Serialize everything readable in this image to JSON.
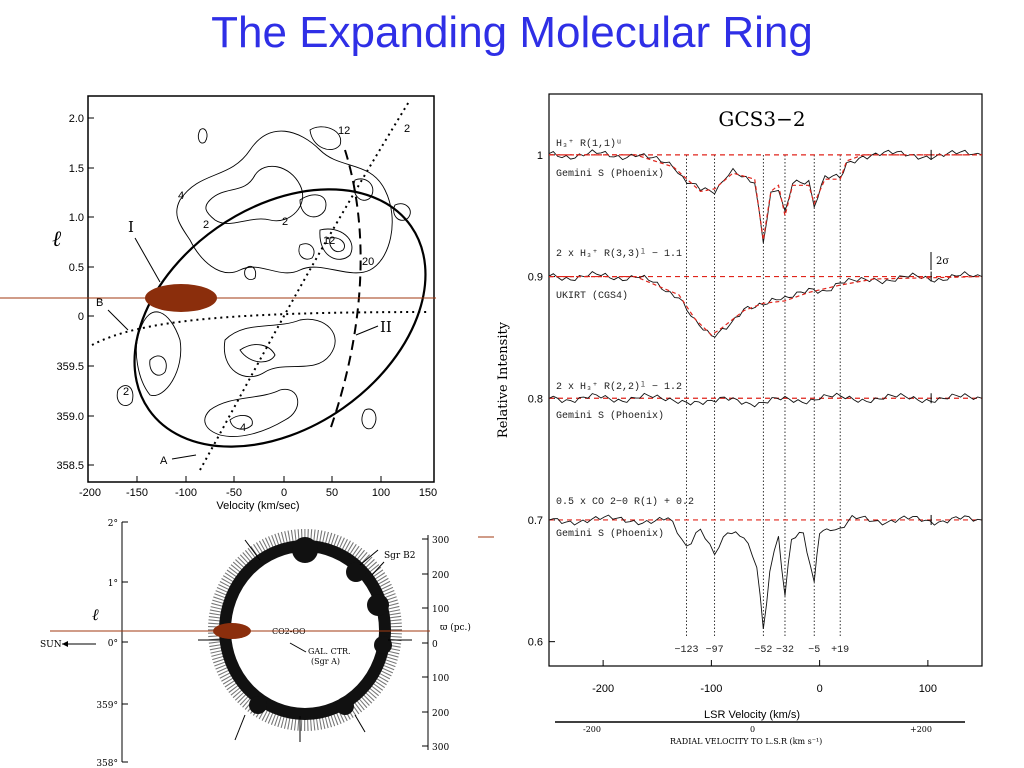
{
  "slide": {
    "title": "The Expanding Molecular Ring"
  },
  "contour_map": {
    "yaxis_label": "ℓ",
    "xaxis_label": "Velocity   (km/sec)",
    "yticks": [
      "2.0",
      "1.5",
      "1.0",
      "0.5",
      "0",
      "359.5",
      "359.0",
      "358.5"
    ],
    "xticks": [
      "-200",
      "-150",
      "-100",
      "-50",
      "0",
      "50",
      "100",
      "150"
    ],
    "annotations": [
      "I",
      "B",
      "A",
      "II"
    ],
    "contour_labels": [
      "12",
      "2",
      "4",
      "2",
      "2",
      "12",
      "20",
      "4",
      "2"
    ]
  },
  "ring_diagram": {
    "yaxis_label": "ℓ",
    "left_ticks": [
      "2°",
      "1°",
      "0°",
      "359°",
      "358°"
    ],
    "right_ticks": [
      "300",
      "200",
      "100",
      "0",
      "100",
      "200",
      "300"
    ],
    "right_axis_label": "ϖ (pc.)",
    "sun_label": "SUN",
    "sgrb2_label": "Sgr B2",
    "gal_ctr_label": "GAL. CTR.",
    "sgra_label": "(Sgr A)",
    "center_label": "CO2-OO"
  },
  "spectra_chart": {
    "title": "GCS3−2",
    "ylabel": "Relative Intensity",
    "xlabel": "LSR Velocity (km/s)",
    "yticks": [
      "1",
      "0.9",
      "0.8",
      "0.7",
      "0.6"
    ],
    "xticks": [
      "-200",
      "-100",
      "0",
      "100"
    ],
    "line_labels": [
      "−123",
      "−97",
      "−52",
      "−32",
      "−5",
      "+19"
    ],
    "spectra": [
      {
        "label": "H₃⁺ R(1,1)ᵘ",
        "instrument": "Gemini S (Phoenix)"
      },
      {
        "label": "2 x H₃⁺ R(3,3)ˡ − 1.1",
        "instrument": "UKIRT (CGS4)"
      },
      {
        "label": "2 x H₃⁺ R(2,2)ˡ − 1.2",
        "instrument": "Gemini S (Phoenix)"
      },
      {
        "label": "0.5 x CO 2−0 R(1) + 0.2",
        "instrument": "Gemini S (Phoenix)"
      }
    ],
    "sigma_label": "2σ"
  },
  "bottom_axis": {
    "label": "RADIAL  VELOCITY  TO  L.S.R (km s⁻¹)",
    "ticks": [
      "-200",
      "0",
      "+200"
    ]
  },
  "colors": {
    "title": "#2f2fe6",
    "marker": "#8b2e0c",
    "guide_line": "#a03a12",
    "fit_line": "#e0241b"
  },
  "chart_data": {
    "type": "line",
    "title": "GCS3−2",
    "xlabel": "LSR Velocity (km/s)",
    "ylabel": "Relative Intensity",
    "xlim": [
      -250,
      150
    ],
    "ylim": [
      0.58,
      1.05
    ],
    "absorption_velocities": [
      -123,
      -97,
      -52,
      -32,
      -5,
      19
    ],
    "series": [
      {
        "name": "H₃⁺ R(1,1)ᵘ",
        "baseline": 1.0,
        "points": [
          [
            -250,
            1.0
          ],
          [
            -170,
            1.0
          ],
          [
            -135,
            0.99
          ],
          [
            -110,
            0.97
          ],
          [
            -97,
            0.972
          ],
          [
            -80,
            0.985
          ],
          [
            -60,
            0.98
          ],
          [
            -52,
            0.93
          ],
          [
            -45,
            0.97
          ],
          [
            -38,
            0.975
          ],
          [
            -32,
            0.95
          ],
          [
            -25,
            0.975
          ],
          [
            -10,
            0.975
          ],
          [
            -5,
            0.96
          ],
          [
            5,
            0.98
          ],
          [
            19,
            0.98
          ],
          [
            25,
            0.995
          ],
          [
            40,
            1.0
          ],
          [
            150,
            1.0
          ]
        ]
      },
      {
        "name": "2 x H₃⁺ R(3,3)ˡ − 1.1",
        "baseline": 0.9,
        "points": [
          [
            -250,
            0.9
          ],
          [
            -170,
            0.9
          ],
          [
            -130,
            0.885
          ],
          [
            -115,
            0.865
          ],
          [
            -100,
            0.852
          ],
          [
            -90,
            0.858
          ],
          [
            -70,
            0.872
          ],
          [
            -52,
            0.878
          ],
          [
            -32,
            0.88
          ],
          [
            -10,
            0.887
          ],
          [
            19,
            0.893
          ],
          [
            50,
            0.898
          ],
          [
            150,
            0.9
          ]
        ]
      },
      {
        "name": "2 x H₃⁺ R(2,2)ˡ − 1.2",
        "baseline": 0.8,
        "points": [
          [
            -250,
            0.8
          ],
          [
            -150,
            0.8
          ],
          [
            -100,
            0.798
          ],
          [
            -52,
            0.797
          ],
          [
            0,
            0.8
          ],
          [
            150,
            0.8
          ]
        ]
      },
      {
        "name": "0.5 x CO 2−0 R(1) + 0.2",
        "baseline": 0.7,
        "points": [
          [
            -250,
            0.7
          ],
          [
            -140,
            0.7
          ],
          [
            -123,
            0.68
          ],
          [
            -110,
            0.69
          ],
          [
            -97,
            0.675
          ],
          [
            -85,
            0.69
          ],
          [
            -70,
            0.685
          ],
          [
            -58,
            0.66
          ],
          [
            -52,
            0.61
          ],
          [
            -46,
            0.66
          ],
          [
            -38,
            0.69
          ],
          [
            -32,
            0.635
          ],
          [
            -26,
            0.685
          ],
          [
            -15,
            0.69
          ],
          [
            -5,
            0.65
          ],
          [
            0,
            0.69
          ],
          [
            10,
            0.695
          ],
          [
            19,
            0.69
          ],
          [
            30,
            0.7
          ],
          [
            150,
            0.7
          ]
        ]
      }
    ]
  }
}
